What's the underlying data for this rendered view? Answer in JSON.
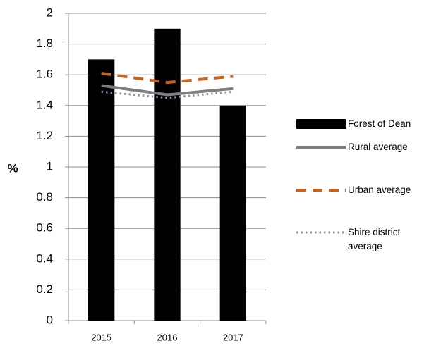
{
  "chart_data": {
    "type": "bar",
    "y_label": "%",
    "categories": [
      "2015",
      "2016",
      "2017"
    ],
    "series": [
      {
        "name": "Forest of Dean",
        "type": "bar",
        "color": "#000000",
        "values": [
          1.7,
          1.9,
          1.4
        ]
      },
      {
        "name": "Rural average",
        "type": "line",
        "dash": "solid",
        "color": "#7f7f7f",
        "values": [
          1.53,
          1.47,
          1.51
        ]
      },
      {
        "name": "Urban average",
        "type": "line",
        "dash": "dashed",
        "color": "#c8641e",
        "values": [
          1.61,
          1.55,
          1.59
        ]
      },
      {
        "name": "Shire district average",
        "type": "line",
        "dash": "dotted",
        "color": "#8497b8",
        "values": [
          1.49,
          1.45,
          1.49
        ]
      }
    ],
    "ylim": [
      0,
      2
    ],
    "yticks": [
      0,
      0.2,
      0.4,
      0.6,
      0.8,
      1,
      1.2,
      1.4,
      1.6,
      1.8,
      2
    ],
    "grid": true,
    "legend": "right"
  }
}
